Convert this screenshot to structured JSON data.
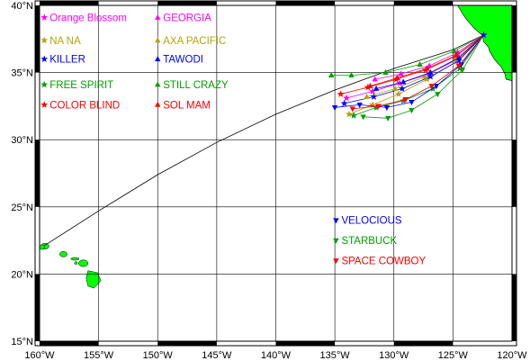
{
  "map": {
    "lat_range": [
      15,
      40
    ],
    "lon_range": [
      -160,
      -120
    ],
    "lat_labels": [
      "15°N",
      "20°N",
      "25°N",
      "30°N",
      "35°N",
      "40°N"
    ],
    "lon_labels": [
      "160°W",
      "155°W",
      "150°W",
      "145°W",
      "140°W",
      "135°W",
      "130°W",
      "125°W",
      "120°W"
    ],
    "land_color": "#00ff00",
    "grid": true,
    "great_circle_route": [
      [
        -159.8,
        22.0
      ],
      [
        -155,
        24.7
      ],
      [
        -150,
        27.4
      ],
      [
        -145,
        29.8
      ],
      [
        -140,
        31.9
      ],
      [
        -135,
        33.7
      ],
      [
        -130,
        35.3
      ],
      [
        -125,
        36.7
      ],
      [
        -122.4,
        37.8
      ]
    ],
    "start_marker": {
      "lon": -122.4,
      "lat": 37.8,
      "color": "#0000ff"
    },
    "origin_island_marker": {
      "lon": -159.8,
      "lat": 22.0
    }
  },
  "legend": [
    {
      "name": "Orange Blossom",
      "color": "#ff00ff",
      "symbol": "star",
      "lon": -159.6,
      "lat": 39.1
    },
    {
      "name": "NA NA",
      "color": "#b5a40a",
      "symbol": "star",
      "lon": -159.6,
      "lat": 37.4
    },
    {
      "name": "KILLER",
      "color": "#0000ff",
      "symbol": "star",
      "lon": -159.6,
      "lat": 36.0
    },
    {
      "name": "FREE SPIRIT",
      "color": "#00a000",
      "symbol": "star",
      "lon": -159.6,
      "lat": 34.1
    },
    {
      "name": "COLOR BLIND",
      "color": "#ff0000",
      "symbol": "star",
      "lon": -159.6,
      "lat": 32.6
    },
    {
      "name": "GEORGIA",
      "color": "#ff00ff",
      "symbol": "tri-up",
      "lon": -150.0,
      "lat": 39.1
    },
    {
      "name": "AXA PACIFIC",
      "color": "#b5a40a",
      "symbol": "tri-up",
      "lon": -150.0,
      "lat": 37.4
    },
    {
      "name": "TAWODI",
      "color": "#0000ff",
      "symbol": "tri-up",
      "lon": -150.0,
      "lat": 36.0
    },
    {
      "name": "STILL CRAZY",
      "color": "#00a000",
      "symbol": "tri-up",
      "lon": -150.0,
      "lat": 34.1
    },
    {
      "name": "SOL MAM",
      "color": "#ff0000",
      "symbol": "tri-up",
      "lon": -150.0,
      "lat": 32.6
    },
    {
      "name": "VELOCIOUS",
      "color": "#0000ff",
      "symbol": "tri-down",
      "lon": -134.9,
      "lat": 24.0
    },
    {
      "name": "STARBUCK",
      "color": "#00a000",
      "symbol": "tri-down",
      "lon": -134.9,
      "lat": 22.5
    },
    {
      "name": "SPACE COWBOY",
      "color": "#ff0000",
      "symbol": "tri-down",
      "lon": -134.9,
      "lat": 21.0
    }
  ],
  "tracks": [
    {
      "color": "#ff00ff",
      "symbol": "star",
      "points": [
        [
          -122.4,
          37.8
        ],
        [
          -124.6,
          36.0
        ],
        [
          -127.0,
          34.9
        ],
        [
          -129.5,
          34.2
        ],
        [
          -131.8,
          33.6
        ],
        [
          -134.0,
          33.1
        ]
      ]
    },
    {
      "color": "#b5a40a",
      "symbol": "star",
      "points": [
        [
          -122.4,
          37.8
        ],
        [
          -124.7,
          35.8
        ],
        [
          -127.2,
          34.5
        ],
        [
          -129.6,
          33.4
        ],
        [
          -131.8,
          32.6
        ],
        [
          -133.8,
          31.9
        ]
      ]
    },
    {
      "color": "#0000ff",
      "symbol": "star",
      "points": [
        [
          -122.4,
          37.8
        ],
        [
          -124.5,
          35.9
        ],
        [
          -126.9,
          34.7
        ],
        [
          -129.3,
          33.8
        ],
        [
          -131.7,
          33.2
        ],
        [
          -134.2,
          32.7
        ]
      ]
    },
    {
      "color": "#00a000",
      "symbol": "star",
      "points": [
        [
          -122.4,
          37.8
        ],
        [
          -124.4,
          35.3
        ],
        [
          -126.7,
          33.8
        ],
        [
          -129.2,
          32.9
        ],
        [
          -131.5,
          32.4
        ],
        [
          -133.4,
          31.8
        ]
      ]
    },
    {
      "color": "#ff0000",
      "symbol": "star",
      "points": [
        [
          -122.4,
          37.8
        ],
        [
          -124.8,
          36.2
        ],
        [
          -127.3,
          35.2
        ],
        [
          -129.8,
          34.5
        ],
        [
          -132.2,
          33.9
        ],
        [
          -134.5,
          33.4
        ]
      ]
    },
    {
      "color": "#ff00ff",
      "symbol": "tri-up",
      "points": [
        [
          -122.4,
          37.8
        ],
        [
          -124.6,
          36.5
        ],
        [
          -127.0,
          35.5
        ],
        [
          -129.4,
          34.9
        ],
        [
          -131.6,
          34.5
        ]
      ]
    },
    {
      "color": "#b5a40a",
      "symbol": "tri-up",
      "points": [
        [
          -122.4,
          37.8
        ],
        [
          -124.8,
          36.0
        ],
        [
          -127.4,
          34.7
        ],
        [
          -129.9,
          33.8
        ],
        [
          -132.3,
          33.2
        ]
      ]
    },
    {
      "color": "#0000ff",
      "symbol": "tri-up",
      "points": [
        [
          -122.4,
          37.8
        ],
        [
          -124.5,
          36.1
        ],
        [
          -126.9,
          35.0
        ],
        [
          -129.2,
          34.3
        ],
        [
          -131.5,
          33.8
        ]
      ]
    },
    {
      "color": "#00a000",
      "symbol": "tri-up",
      "points": [
        [
          -122.4,
          37.8
        ],
        [
          -124.9,
          36.6
        ],
        [
          -127.8,
          35.6
        ],
        [
          -130.7,
          35.0
        ],
        [
          -133.6,
          34.8
        ],
        [
          -135.3,
          34.8
        ]
      ]
    },
    {
      "color": "#ff0000",
      "symbol": "tri-up",
      "points": [
        [
          -122.4,
          37.8
        ],
        [
          -124.7,
          36.3
        ],
        [
          -127.2,
          35.3
        ],
        [
          -129.7,
          34.6
        ],
        [
          -132.0,
          34.0
        ]
      ]
    },
    {
      "color": "#0000ff",
      "symbol": "tri-down",
      "points": [
        [
          -122.4,
          37.8
        ],
        [
          -124.3,
          35.6
        ],
        [
          -126.4,
          34.0
        ],
        [
          -128.5,
          32.8
        ],
        [
          -130.6,
          32.4
        ],
        [
          -132.9,
          32.6
        ],
        [
          -135.0,
          32.4
        ]
      ]
    },
    {
      "color": "#00a000",
      "symbol": "tri-down",
      "points": [
        [
          -122.4,
          37.8
        ],
        [
          -124.2,
          35.2
        ],
        [
          -126.3,
          33.4
        ],
        [
          -128.5,
          32.2
        ],
        [
          -130.5,
          31.6
        ],
        [
          -132.6,
          31.7
        ]
      ]
    },
    {
      "color": "#ff0000",
      "symbol": "tri-down",
      "points": [
        [
          -122.4,
          37.8
        ],
        [
          -124.5,
          35.5
        ],
        [
          -126.8,
          34.0
        ],
        [
          -129.0,
          33.0
        ],
        [
          -131.3,
          32.5
        ],
        [
          -133.5,
          32.3
        ]
      ]
    }
  ]
}
